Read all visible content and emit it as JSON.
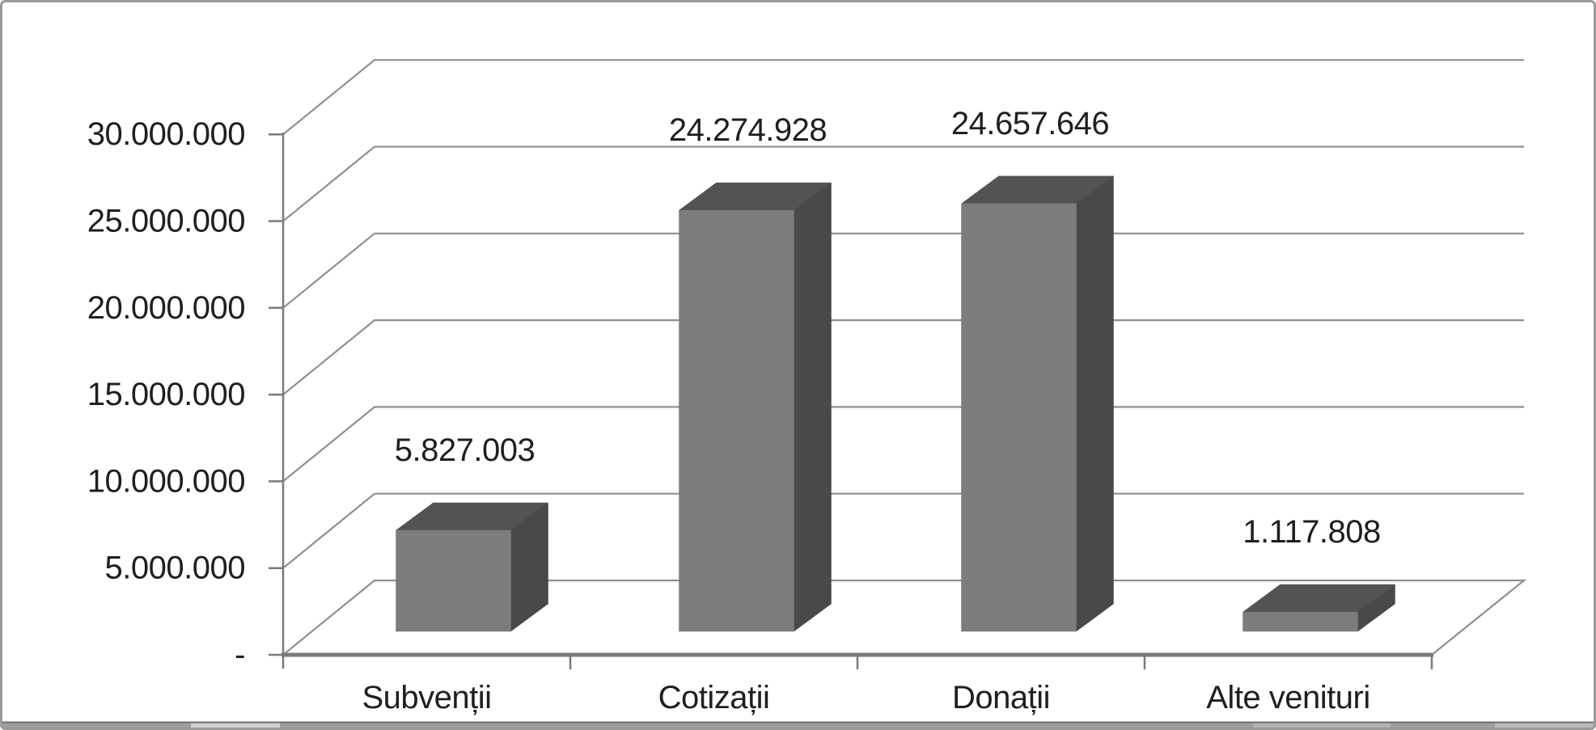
{
  "chart_data": {
    "type": "bar",
    "style": "3d-column",
    "title": "",
    "xlabel": "",
    "ylabel": "",
    "categories": [
      "Subvenții",
      "Cotizații",
      "Donații",
      "Alte venituri"
    ],
    "values": [
      5827003,
      24274928,
      24657646,
      1117808
    ],
    "data_labels": [
      "5.827.003",
      "24.274.928",
      "24.657.646",
      "1.117.808"
    ],
    "y_axis": {
      "tick_labels": [
        "-",
        "5.000.000",
        "10.000.000",
        "15.000.000",
        "20.000.000",
        "25.000.000",
        "30.000.000"
      ],
      "tick_values": [
        0,
        5000000,
        10000000,
        15000000,
        20000000,
        25000000,
        30000000
      ],
      "min": 0,
      "max": 30000000
    },
    "grid": true,
    "legend": "none",
    "colors": {
      "background": "#ffffff",
      "bar_front": "#7c7c7c",
      "bar_top": "#535353",
      "bar_side": "#494949",
      "gridline": "#8f8f8f",
      "axis": "#7a7a7a",
      "text": "#1f1f1f",
      "frame_border": "#9a9a9a",
      "bottom_strip": "#9e9e9e",
      "bottom_strip_light": "#cfcfcf"
    }
  }
}
